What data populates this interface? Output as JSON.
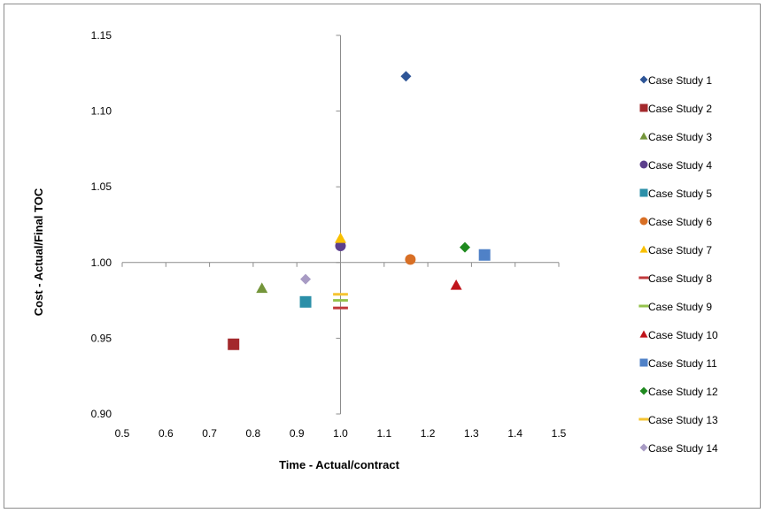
{
  "chart_data": {
    "type": "scatter",
    "title": "",
    "xlabel": "Time - Actual/contract",
    "ylabel": "Cost - Actual/Final TOC",
    "xlim": [
      0.5,
      1.5
    ],
    "ylim": [
      0.9,
      1.15
    ],
    "xticks": [
      "0.5",
      "0.6",
      "0.7",
      "0.8",
      "0.9",
      "1.0",
      "1.1",
      "1.2",
      "1.3",
      "1.4",
      "1.5"
    ],
    "yticks": [
      "0.90",
      "0.95",
      "1.00",
      "1.05",
      "1.10",
      "1.15"
    ],
    "axes_cross": {
      "x": 1.0,
      "y": 1.0
    },
    "grid": false,
    "legend_position": "right",
    "series": [
      {
        "name": "Case Study 1",
        "x": 1.15,
        "y": 1.123,
        "marker": "diamond",
        "color": "#2e5597"
      },
      {
        "name": "Case Study 2",
        "x": 0.755,
        "y": 0.946,
        "marker": "square",
        "color": "#a3292c"
      },
      {
        "name": "Case Study 3",
        "x": 0.82,
        "y": 0.983,
        "marker": "triangle",
        "color": "#74953a"
      },
      {
        "name": "Case Study 4",
        "x": 1.0,
        "y": 1.011,
        "marker": "circle",
        "color": "#5c3f8c"
      },
      {
        "name": "Case Study 5",
        "x": 0.92,
        "y": 0.974,
        "marker": "square",
        "color": "#2b8fa8"
      },
      {
        "name": "Case Study 6",
        "x": 1.16,
        "y": 1.002,
        "marker": "circle",
        "color": "#d86f25"
      },
      {
        "name": "Case Study 7",
        "x": 1.0,
        "y": 1.016,
        "marker": "triangle",
        "color": "#f9c000"
      },
      {
        "name": "Case Study 8",
        "x": 1.0,
        "y": 0.97,
        "marker": "dash",
        "color": "#c0383b"
      },
      {
        "name": "Case Study 9",
        "x": 1.0,
        "y": 0.975,
        "marker": "dash",
        "color": "#94c24c"
      },
      {
        "name": "Case Study 10",
        "x": 1.265,
        "y": 0.985,
        "marker": "triangle",
        "color": "#c0141b"
      },
      {
        "name": "Case Study 11",
        "x": 1.33,
        "y": 1.005,
        "marker": "square",
        "color": "#4f81c7"
      },
      {
        "name": "Case Study 12",
        "x": 1.285,
        "y": 1.01,
        "marker": "diamond",
        "color": "#1f8a1f"
      },
      {
        "name": "Case Study 13",
        "x": 1.0,
        "y": 0.979,
        "marker": "dash",
        "color": "#f5c431"
      },
      {
        "name": "Case Study 14",
        "x": 0.92,
        "y": 0.989,
        "marker": "diamond",
        "color": "#a89bc4"
      }
    ]
  }
}
